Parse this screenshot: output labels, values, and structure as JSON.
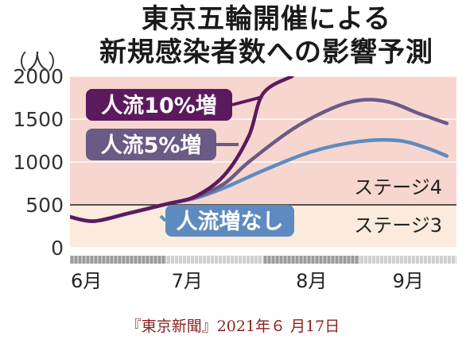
{
  "title_line1": "東京五輪開催による",
  "title_line2": "新規感染者数への影響予測",
  "unit": "（人）",
  "source": "『東京新聞』2021年６ 月17日",
  "colors": {
    "upper_bg": "#f6d6cf",
    "lower_bg": "#fcebdc",
    "series_10": "#5b1a5e",
    "series_5": "#6a5a86",
    "series_0": "#5e8bbf"
  },
  "chart_data": {
    "type": "line",
    "xlabel": "",
    "ylabel": "（人）",
    "ylim": [
      0,
      2000
    ],
    "yticks": [
      0,
      500,
      1000,
      1500,
      2000
    ],
    "x_months": [
      "6月",
      "7月",
      "8月",
      "9月"
    ],
    "x_range": [
      0,
      4
    ],
    "threshold": {
      "value": 500,
      "label_above": "ステージ4",
      "label_below": "ステージ3"
    },
    "series": [
      {
        "name": "人流10%増",
        "x": [
          0,
          0.25,
          0.6,
          1.0,
          1.3,
          1.6,
          1.85,
          2.0,
          2.3
        ],
        "y": [
          360,
          310,
          400,
          510,
          600,
          850,
          1300,
          1800,
          2000
        ]
      },
      {
        "name": "人流5%増",
        "x": [
          0,
          0.25,
          0.6,
          1.0,
          1.3,
          1.6,
          1.85,
          2.3,
          2.7,
          3.0,
          3.3,
          3.6,
          3.9
        ],
        "y": [
          360,
          310,
          400,
          510,
          590,
          750,
          1000,
          1380,
          1620,
          1720,
          1700,
          1570,
          1450
        ]
      },
      {
        "name": "人流増なし",
        "x": [
          0,
          0.25,
          0.6,
          1.0,
          1.3,
          1.6,
          2.0,
          2.5,
          3.0,
          3.4,
          3.7,
          3.9
        ],
        "y": [
          360,
          310,
          400,
          510,
          580,
          700,
          900,
          1120,
          1240,
          1250,
          1160,
          1070
        ]
      }
    ]
  }
}
